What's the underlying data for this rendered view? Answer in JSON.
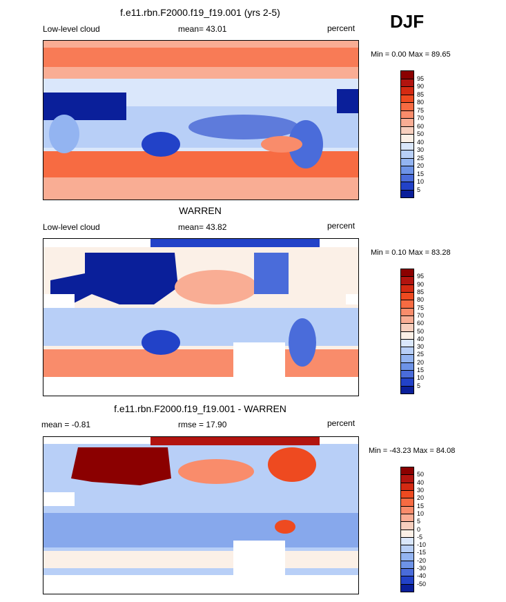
{
  "season": "DJF",
  "chart_data": [
    {
      "type": "heatmap",
      "title": "f.e11.rbn.F2000.f19_f19.001 (yrs 2-5)",
      "left_label": "Low-level cloud",
      "center_label": "mean=  43.01",
      "units": "percent",
      "minmax": "Min =   0.00 Max =  89.65",
      "min": 0.0,
      "max": 89.65,
      "colorbar": {
        "labels": [
          "95",
          "90",
          "85",
          "80",
          "75",
          "70",
          "60",
          "50",
          "40",
          "30",
          "25",
          "20",
          "15",
          "10",
          "5"
        ],
        "colors": [
          "#8b0000",
          "#b2140f",
          "#d42a12",
          "#ee4a20",
          "#f76b42",
          "#f98c6b",
          "#f9ad94",
          "#f7cfbe",
          "#fbf0e7",
          "#dae7fb",
          "#b8cff7",
          "#93b4f1",
          "#6d93e7",
          "#4a6cda",
          "#2242c8",
          "#0a1f9a"
        ]
      }
    },
    {
      "type": "heatmap",
      "title": "WARREN",
      "left_label": "Low-level cloud",
      "center_label": "mean=  43.82",
      "units": "percent",
      "minmax": "Min =   0.10 Max =  83.28",
      "min": 0.1,
      "max": 83.28,
      "colorbar": {
        "labels": [
          "95",
          "90",
          "85",
          "80",
          "75",
          "70",
          "60",
          "50",
          "40",
          "30",
          "25",
          "20",
          "15",
          "10",
          "5"
        ],
        "colors": [
          "#8b0000",
          "#b2140f",
          "#d42a12",
          "#ee4a20",
          "#f76b42",
          "#f98c6b",
          "#f9ad94",
          "#f7cfbe",
          "#fbf0e7",
          "#dae7fb",
          "#b8cff7",
          "#93b4f1",
          "#6d93e7",
          "#4a6cda",
          "#2242c8",
          "#0a1f9a"
        ]
      }
    },
    {
      "type": "heatmap",
      "title": "f.e11.rbn.F2000.f19_f19.001 - WARREN",
      "left_label": "mean =  -0.81",
      "center_label": "rmse =  17.90",
      "units": "percent",
      "minmax": "Min = -43.23 Max =  84.08",
      "min": -43.23,
      "max": 84.08,
      "colorbar": {
        "labels": [
          "50",
          "40",
          "30",
          "20",
          "15",
          "10",
          "5",
          "0",
          "-5",
          "-10",
          "-15",
          "-20",
          "-30",
          "-40",
          "-50"
        ],
        "colors": [
          "#8b0000",
          "#b2140f",
          "#d42a12",
          "#ee4a20",
          "#f76b42",
          "#f98c6b",
          "#f9ad94",
          "#f7cfbe",
          "#fbf0e7",
          "#dae7fb",
          "#b8cff7",
          "#93b4f1",
          "#6d93e7",
          "#4a6cda",
          "#2242c8",
          "#0a1f9a"
        ]
      }
    }
  ]
}
